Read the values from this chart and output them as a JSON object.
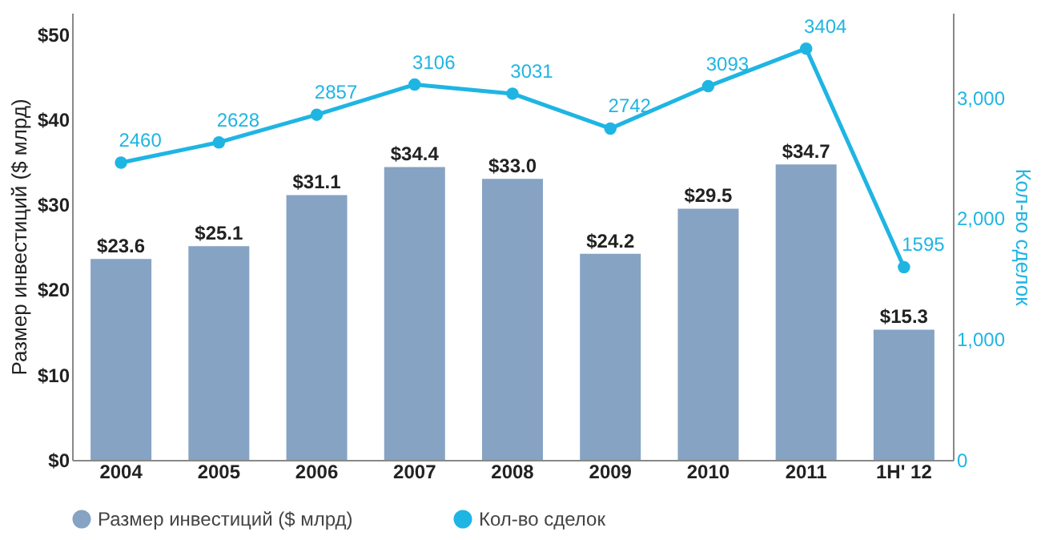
{
  "chart_data": {
    "type": "bar",
    "categories": [
      "2004",
      "2005",
      "2006",
      "2007",
      "2008",
      "2009",
      "2010",
      "2011",
      "1H' 12"
    ],
    "series": [
      {
        "name": "Размер инвестиций ($ млрд)",
        "color": "#86a3c3",
        "values": [
          23.6,
          25.1,
          31.1,
          34.4,
          33.0,
          24.2,
          29.5,
          34.7,
          15.3
        ],
        "value_labels": [
          "$23.6",
          "$25.1",
          "$31.1",
          "$34.4",
          "$33.0",
          "$24.2",
          "$29.5",
          "$34.7",
          "$15.3"
        ]
      },
      {
        "name": "Кол-во сделок",
        "type": "line",
        "axis": "y2",
        "color": "#1fb5e3",
        "values": [
          2460,
          2628,
          2857,
          3106,
          3031,
          2742,
          3093,
          3404,
          1595
        ],
        "value_labels": [
          "2460",
          "2628",
          "2857",
          "3106",
          "3031",
          "2742",
          "3093",
          "3404",
          "1595"
        ]
      }
    ],
    "ylabel": "Размер инвестиций ($ млрд)",
    "y2label": "Кол-во сделок",
    "ylim": [
      0,
      52.5
    ],
    "yticks": [
      {
        "value": 0,
        "label": "$0"
      },
      {
        "value": 10,
        "label": "$10"
      },
      {
        "value": 20,
        "label": "$20"
      },
      {
        "value": 30,
        "label": "$30"
      },
      {
        "value": 40,
        "label": "$40"
      },
      {
        "value": 50,
        "label": "$50"
      }
    ],
    "y2lim": [
      0,
      3700
    ],
    "y2ticks": [
      0,
      {
        "value": 1000,
        "label": "1,000"
      },
      {
        "value": 2000,
        "label": "2,000"
      },
      {
        "value": 3000,
        "label": "3,000"
      }
    ],
    "legend": "bottom",
    "grid": false,
    "marker": "circle"
  }
}
